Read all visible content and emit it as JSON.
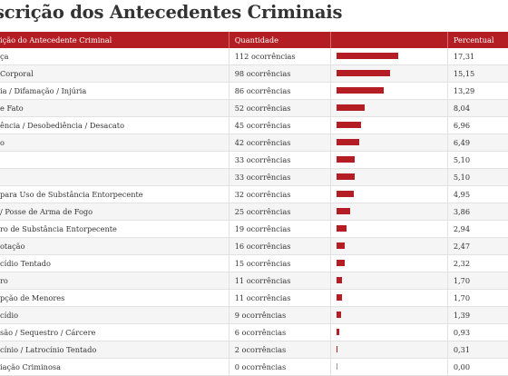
{
  "title": "scrição dos Antecedentes Criminais",
  "headers": {
    "description": "ição do Antecedente Criminal",
    "quantity": "Quantidade",
    "bar": "",
    "percent": "Percentual"
  },
  "accent_color": "#b31d23",
  "rows": [
    {
      "label": "ça",
      "quantity": "112 ocorrências",
      "percent": "17,31",
      "value": 17.31
    },
    {
      "label": "Corporal",
      "quantity": "98 ocorrências",
      "percent": "15,15",
      "value": 15.15
    },
    {
      "label": "ia / Difamação / Injúria",
      "quantity": "86 ocorrências",
      "percent": "13,29",
      "value": 13.29
    },
    {
      "label": "e Fato",
      "quantity": "52 ocorrências",
      "percent": "8,04",
      "value": 8.04
    },
    {
      "label": "ência / Desobediência / Desacato",
      "quantity": "45 ocorrências",
      "percent": "6,96",
      "value": 6.96
    },
    {
      "label": "o",
      "quantity": "42 ocorrências",
      "percent": "6,49",
      "value": 6.49
    },
    {
      "label": "",
      "quantity": "33 ocorrências",
      "percent": "5,10",
      "value": 5.1
    },
    {
      "label": "",
      "quantity": "33 ocorrências",
      "percent": "5,10",
      "value": 5.1
    },
    {
      "label": "para Uso de Substância Entorpecente",
      "quantity": "32 ocorrências",
      "percent": "4,95",
      "value": 4.95
    },
    {
      "label": "/ Posse de Arma de Fogo",
      "quantity": "25 ocorrências",
      "percent": "3,86",
      "value": 3.86
    },
    {
      "label": "ro de Substância Entorpecente",
      "quantity": "19 ocorrências",
      "percent": "2,94",
      "value": 2.94
    },
    {
      "label": "otação",
      "quantity": "16 ocorrências",
      "percent": "2,47",
      "value": 2.47
    },
    {
      "label": "cídio Tentado",
      "quantity": "15 ocorrências",
      "percent": "2,32",
      "value": 2.32
    },
    {
      "label": "ro",
      "quantity": "11 ocorrências",
      "percent": "1,70",
      "value": 1.7
    },
    {
      "label": "pção de Menores",
      "quantity": "11 ocorrências",
      "percent": "1,70",
      "value": 1.7
    },
    {
      "label": "cídio",
      "quantity": "9 ocorrências",
      "percent": "1,39",
      "value": 1.39
    },
    {
      "label": "são / Sequestro / Cárcere",
      "quantity": "6 ocorrências",
      "percent": "0,93",
      "value": 0.93
    },
    {
      "label": "cínio / Latrocínio Tentado",
      "quantity": "2 ocorrências",
      "percent": "0,31",
      "value": 0.31
    },
    {
      "label": "iação Criminosa",
      "quantity": "0 ocorrências",
      "percent": "0,00",
      "value": 0.0
    }
  ]
}
